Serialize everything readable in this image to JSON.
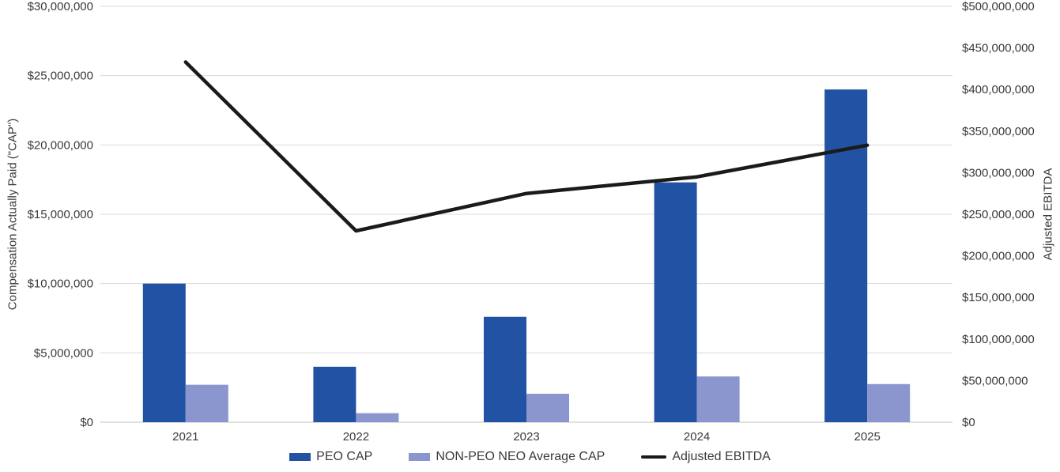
{
  "chart_data": {
    "type": "combo-bar-line",
    "categories": [
      "2021",
      "2022",
      "2023",
      "2024",
      "2025"
    ],
    "series": [
      {
        "name": "PEO CAP",
        "type": "bar",
        "axis": "left",
        "color": "#2152A3",
        "values": [
          10000000,
          4000000,
          7600000,
          17300000,
          24000000
        ]
      },
      {
        "name": "NON-PEO NEO Average CAP",
        "type": "bar",
        "axis": "left",
        "color": "#8C96CE",
        "values": [
          2700000,
          650000,
          2050000,
          3300000,
          2750000
        ]
      },
      {
        "name": "Adjusted EBITDA",
        "type": "line",
        "axis": "right",
        "color": "#1A1A1A",
        "values": [
          433000000,
          230000000,
          275000000,
          295000000,
          333000000
        ]
      }
    ],
    "left_axis": {
      "title": "Compensation Actually Paid (\"CAP\")",
      "min": 0,
      "max": 30000000,
      "tick_step": 5000000,
      "tick_labels": [
        "$0",
        "$5,000,000",
        "$10,000,000",
        "$15,000,000",
        "$20,000,000",
        "$25,000,000",
        "$30,000,000"
      ]
    },
    "right_axis": {
      "title": "Adjusted EBITDA",
      "min": 0,
      "max": 500000000,
      "tick_step": 50000000,
      "tick_labels": [
        "$0",
        "$50,000,000",
        "$100,000,000",
        "$150,000,000",
        "$200,000,000",
        "$250,000,000",
        "$300,000,000",
        "$350,000,000",
        "$400,000,000",
        "$450,000,000",
        "$500,000,000"
      ]
    },
    "grid": true,
    "legend_position": "bottom"
  },
  "colors": {
    "gridline": "#DADADA",
    "baseline": "#C2C2C2",
    "text": "#3A3A3A",
    "background": "#FFFFFF"
  }
}
